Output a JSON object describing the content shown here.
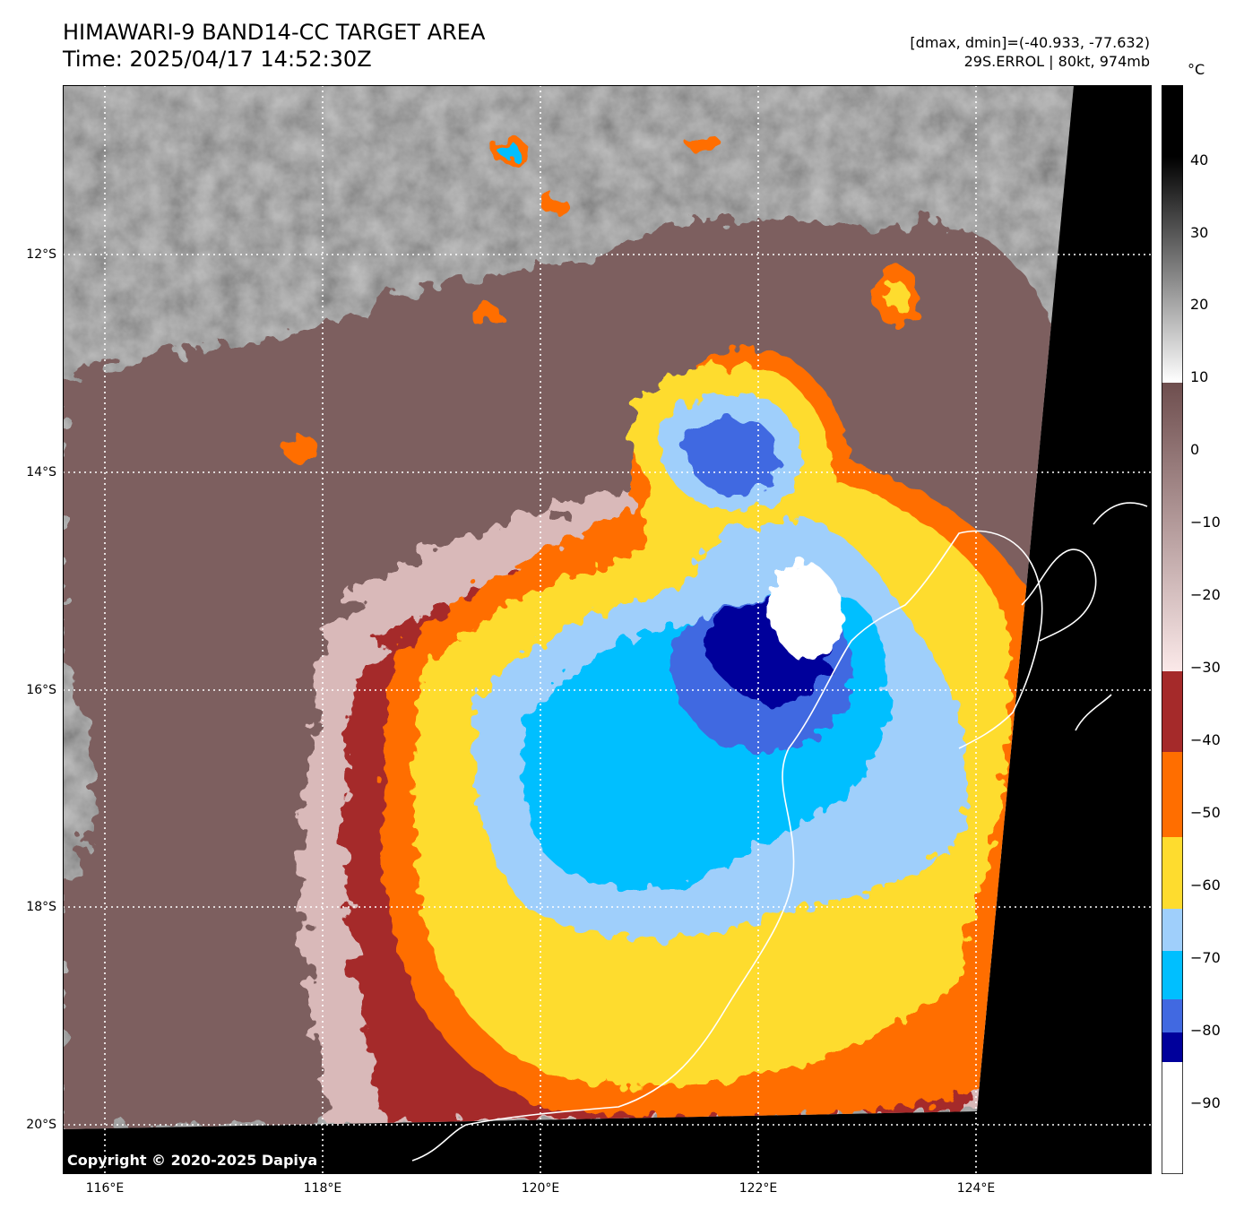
{
  "header": {
    "title_line1": "HIMAWARI-9 BAND14-CC TARGET AREA",
    "title_line2": "Time: 2025/04/17 14:52:30Z",
    "range_text": "[dmax, dmin]=(-40.933, -77.632)",
    "storm_text": "29S.ERROL | 80kt, 974mb"
  },
  "map": {
    "copyright": "Copyright © 2020-2025 Dapiya",
    "lat_labels": [
      "12°S",
      "14°S",
      "16°S",
      "18°S",
      "20°S"
    ],
    "lon_labels": [
      "116°E",
      "118°E",
      "120°E",
      "122°E",
      "124°E"
    ]
  },
  "colorbar": {
    "unit": "°C",
    "tick_labels": [
      "40",
      "30",
      "20",
      "10",
      "0",
      "−10",
      "−20",
      "−30",
      "−40",
      "−50",
      "−60",
      "−70",
      "−80",
      "−90"
    ],
    "colors": {
      "black": "#000000",
      "gray_mid": "#808080",
      "white": "#ffffff",
      "brown": "#7a5a5a",
      "pink_light": "#f4dada",
      "dark_red": "#a52a2a",
      "orange": "#ff6e00",
      "yellow": "#fedc2e",
      "light_blue": "#9fcffb",
      "cyan": "#00bfff",
      "royal_blue": "#4169e1",
      "navy": "#00009b"
    }
  }
}
